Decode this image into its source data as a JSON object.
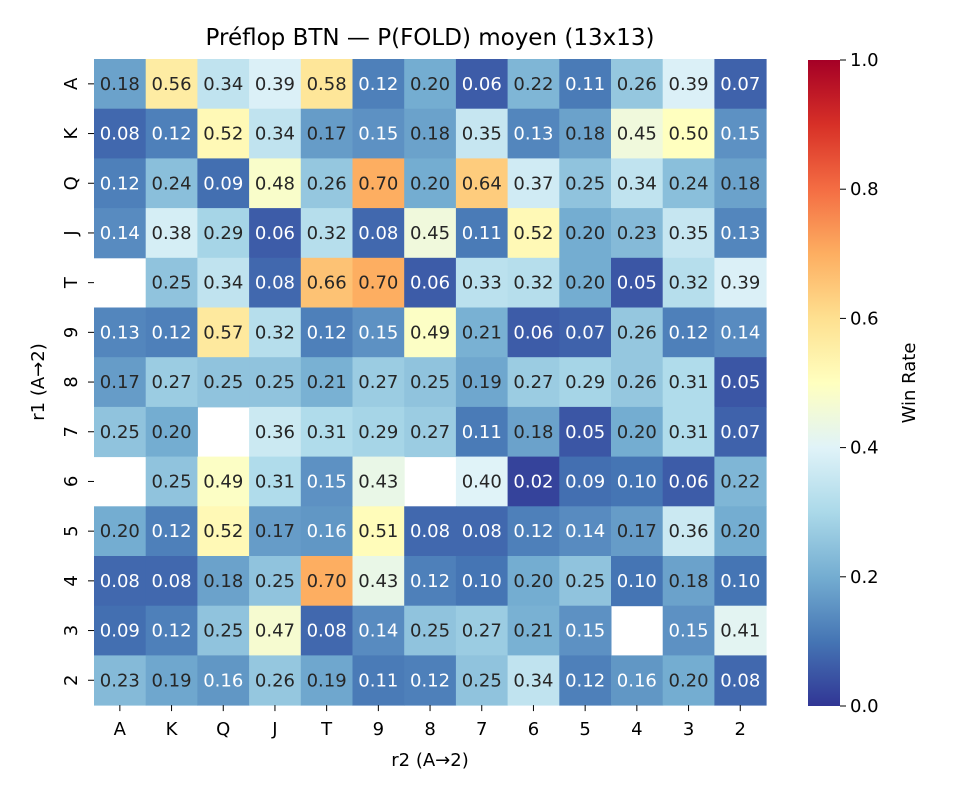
{
  "chart_data": {
    "type": "heatmap",
    "title": "Préflop BTN — P(FOLD) moyen (13x13)",
    "xlabel": "r2 (A→2)",
    "ylabel": "r1 (A→2)",
    "x_categories": [
      "A",
      "K",
      "Q",
      "J",
      "T",
      "9",
      "8",
      "7",
      "6",
      "5",
      "4",
      "3",
      "2"
    ],
    "y_categories": [
      "A",
      "K",
      "Q",
      "J",
      "T",
      "9",
      "8",
      "7",
      "6",
      "5",
      "4",
      "3",
      "2"
    ],
    "values": [
      [
        0.18,
        0.56,
        0.34,
        0.39,
        0.58,
        0.12,
        0.2,
        0.06,
        0.22,
        0.11,
        0.26,
        0.39,
        0.07
      ],
      [
        0.08,
        0.12,
        0.52,
        0.34,
        0.17,
        0.15,
        0.18,
        0.35,
        0.13,
        0.18,
        0.45,
        0.5,
        0.15
      ],
      [
        0.12,
        0.24,
        0.09,
        0.48,
        0.26,
        0.7,
        0.2,
        0.64,
        0.37,
        0.25,
        0.34,
        0.24,
        0.18
      ],
      [
        0.14,
        0.38,
        0.29,
        0.06,
        0.32,
        0.08,
        0.45,
        0.11,
        0.52,
        0.2,
        0.23,
        0.35,
        0.13
      ],
      [
        null,
        0.25,
        0.34,
        0.08,
        0.66,
        0.7,
        0.06,
        0.33,
        0.32,
        0.2,
        0.05,
        0.32,
        0.39
      ],
      [
        0.13,
        0.12,
        0.57,
        0.32,
        0.12,
        0.15,
        0.49,
        0.21,
        0.06,
        0.07,
        0.26,
        0.12,
        0.14
      ],
      [
        0.17,
        0.27,
        0.25,
        0.25,
        0.21,
        0.27,
        0.25,
        0.19,
        0.27,
        0.29,
        0.26,
        0.31,
        0.05
      ],
      [
        0.25,
        0.2,
        null,
        0.36,
        0.31,
        0.29,
        0.27,
        0.11,
        0.18,
        0.05,
        0.2,
        0.31,
        0.07
      ],
      [
        null,
        0.25,
        0.49,
        0.31,
        0.15,
        0.43,
        null,
        0.4,
        0.02,
        0.09,
        0.1,
        0.06,
        0.22
      ],
      [
        0.2,
        0.12,
        0.52,
        0.17,
        0.16,
        0.51,
        0.08,
        0.08,
        0.12,
        0.14,
        0.17,
        0.36,
        0.2
      ],
      [
        0.08,
        0.08,
        0.18,
        0.25,
        0.7,
        0.43,
        0.12,
        0.1,
        0.2,
        0.25,
        0.1,
        0.18,
        0.1
      ],
      [
        0.09,
        0.12,
        0.25,
        0.47,
        0.08,
        0.14,
        0.25,
        0.27,
        0.21,
        0.15,
        null,
        0.15,
        0.41
      ],
      [
        0.23,
        0.19,
        0.16,
        0.26,
        0.19,
        0.11,
        0.12,
        0.25,
        0.34,
        0.12,
        0.16,
        0.2,
        0.08
      ]
    ],
    "colorbar": {
      "label": "Win Rate",
      "range": [
        0.0,
        1.0
      ],
      "ticks": [
        "0.0",
        "0.2",
        "0.4",
        "0.6",
        "0.8",
        "1.0"
      ],
      "colormap": "RdYlBu_r"
    },
    "grid": false
  }
}
